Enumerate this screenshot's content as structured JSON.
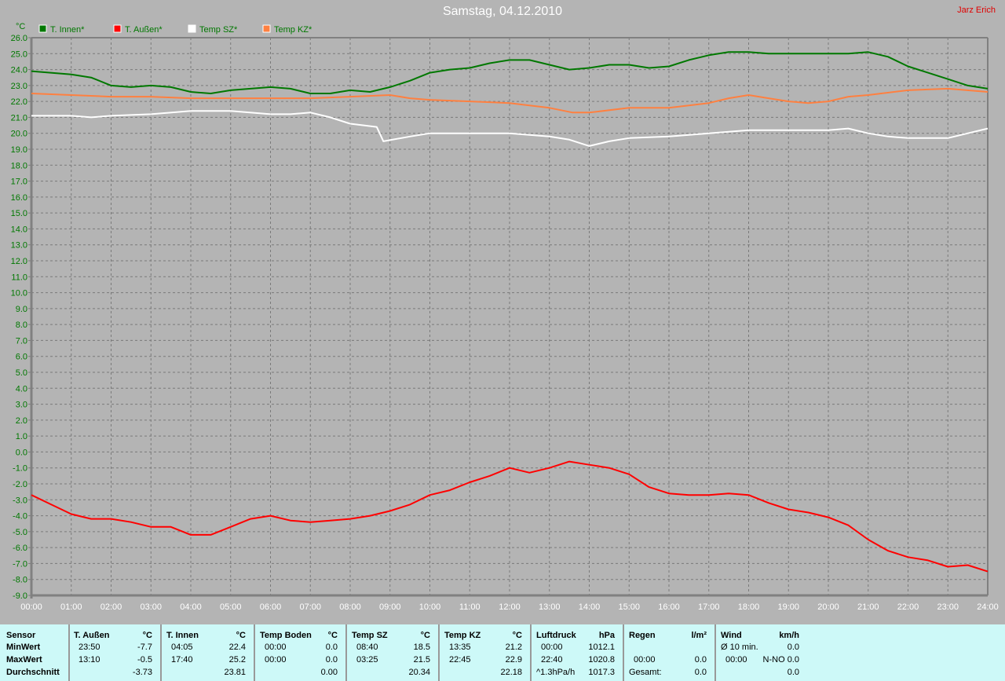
{
  "title": "Samstag, 04.12.2010",
  "author": "Jarz Erich",
  "chart_data": {
    "type": "line",
    "ylabel": "°C",
    "ylim": [
      -9,
      26
    ],
    "yticks": [
      "26.0",
      "25.0",
      "24.0",
      "23.0",
      "22.0",
      "21.0",
      "20.0",
      "19.0",
      "18.0",
      "17.0",
      "16.0",
      "15.0",
      "14.0",
      "13.0",
      "12.0",
      "11.0",
      "10.0",
      "9.0",
      "8.0",
      "7.0",
      "6.0",
      "5.0",
      "4.0",
      "3.0",
      "2.0",
      "1.0",
      "0.0",
      "-1.0",
      "-2.0",
      "-3.0",
      "-4.0",
      "-5.0",
      "-6.0",
      "-7.0",
      "-8.0",
      "-9.0"
    ],
    "xticks": [
      "00:00",
      "01:00",
      "02:00",
      "03:00",
      "04:00",
      "05:00",
      "06:00",
      "07:00",
      "08:00",
      "09:00",
      "10:00",
      "11:00",
      "12:00",
      "13:00",
      "14:00",
      "15:00",
      "16:00",
      "17:00",
      "18:00",
      "19:00",
      "20:00",
      "21:00",
      "22:00",
      "23:00",
      "24:00"
    ],
    "grid": true,
    "legend": "top-left",
    "series": [
      {
        "name": "T. Innen*",
        "color": "#007800",
        "points": [
          [
            "00:00",
            23.9
          ],
          [
            "01:00",
            23.7
          ],
          [
            "01:30",
            23.5
          ],
          [
            "02:00",
            23.0
          ],
          [
            "02:30",
            22.9
          ],
          [
            "03:00",
            23.0
          ],
          [
            "03:30",
            22.9
          ],
          [
            "04:00",
            22.6
          ],
          [
            "04:30",
            22.5
          ],
          [
            "05:00",
            22.7
          ],
          [
            "05:30",
            22.8
          ],
          [
            "06:00",
            22.9
          ],
          [
            "06:30",
            22.8
          ],
          [
            "07:00",
            22.5
          ],
          [
            "07:30",
            22.5
          ],
          [
            "08:00",
            22.7
          ],
          [
            "08:30",
            22.6
          ],
          [
            "09:00",
            22.9
          ],
          [
            "09:30",
            23.3
          ],
          [
            "10:00",
            23.8
          ],
          [
            "10:30",
            24.0
          ],
          [
            "11:00",
            24.1
          ],
          [
            "11:30",
            24.4
          ],
          [
            "12:00",
            24.6
          ],
          [
            "12:30",
            24.6
          ],
          [
            "13:00",
            24.3
          ],
          [
            "13:30",
            24.0
          ],
          [
            "14:00",
            24.1
          ],
          [
            "14:30",
            24.3
          ],
          [
            "15:00",
            24.3
          ],
          [
            "15:30",
            24.1
          ],
          [
            "16:00",
            24.2
          ],
          [
            "16:30",
            24.6
          ],
          [
            "17:00",
            24.9
          ],
          [
            "17:30",
            25.1
          ],
          [
            "18:00",
            25.1
          ],
          [
            "18:30",
            25.0
          ],
          [
            "19:00",
            25.0
          ],
          [
            "20:00",
            25.0
          ],
          [
            "20:30",
            25.0
          ],
          [
            "21:00",
            25.1
          ],
          [
            "21:30",
            24.8
          ],
          [
            "22:00",
            24.2
          ],
          [
            "22:30",
            23.8
          ],
          [
            "23:00",
            23.4
          ],
          [
            "23:30",
            23.0
          ],
          [
            "24:00",
            22.8
          ]
        ]
      },
      {
        "name": "T. Außen*",
        "color": "#ff0000",
        "points": [
          [
            "00:00",
            -2.7
          ],
          [
            "00:30",
            -3.3
          ],
          [
            "01:00",
            -3.9
          ],
          [
            "01:30",
            -4.2
          ],
          [
            "02:00",
            -4.2
          ],
          [
            "02:30",
            -4.4
          ],
          [
            "03:00",
            -4.7
          ],
          [
            "03:30",
            -4.7
          ],
          [
            "04:00",
            -5.2
          ],
          [
            "04:30",
            -5.2
          ],
          [
            "05:00",
            -4.7
          ],
          [
            "05:30",
            -4.2
          ],
          [
            "06:00",
            -4.0
          ],
          [
            "06:30",
            -4.3
          ],
          [
            "07:00",
            -4.4
          ],
          [
            "07:30",
            -4.3
          ],
          [
            "08:00",
            -4.2
          ],
          [
            "08:30",
            -4.0
          ],
          [
            "09:00",
            -3.7
          ],
          [
            "09:30",
            -3.3
          ],
          [
            "10:00",
            -2.7
          ],
          [
            "10:30",
            -2.4
          ],
          [
            "11:00",
            -1.9
          ],
          [
            "11:30",
            -1.5
          ],
          [
            "12:00",
            -1.0
          ],
          [
            "12:30",
            -1.3
          ],
          [
            "13:00",
            -1.0
          ],
          [
            "13:30",
            -0.6
          ],
          [
            "14:00",
            -0.8
          ],
          [
            "14:30",
            -1.0
          ],
          [
            "15:00",
            -1.4
          ],
          [
            "15:30",
            -2.2
          ],
          [
            "16:00",
            -2.6
          ],
          [
            "16:30",
            -2.7
          ],
          [
            "17:00",
            -2.7
          ],
          [
            "17:30",
            -2.6
          ],
          [
            "18:00",
            -2.7
          ],
          [
            "18:30",
            -3.2
          ],
          [
            "19:00",
            -3.6
          ],
          [
            "19:30",
            -3.8
          ],
          [
            "20:00",
            -4.1
          ],
          [
            "20:30",
            -4.6
          ],
          [
            "21:00",
            -5.5
          ],
          [
            "21:30",
            -6.2
          ],
          [
            "22:00",
            -6.6
          ],
          [
            "22:30",
            -6.8
          ],
          [
            "23:00",
            -7.2
          ],
          [
            "23:30",
            -7.1
          ],
          [
            "24:00",
            -7.5
          ]
        ]
      },
      {
        "name": "Temp SZ*",
        "color": "#ffffff",
        "points": [
          [
            "00:00",
            21.1
          ],
          [
            "01:00",
            21.1
          ],
          [
            "01:30",
            21.0
          ],
          [
            "02:00",
            21.1
          ],
          [
            "03:00",
            21.2
          ],
          [
            "04:00",
            21.4
          ],
          [
            "05:00",
            21.4
          ],
          [
            "06:00",
            21.2
          ],
          [
            "06:30",
            21.2
          ],
          [
            "07:00",
            21.3
          ],
          [
            "07:30",
            21.0
          ],
          [
            "08:00",
            20.6
          ],
          [
            "08:40",
            20.4
          ],
          [
            "08:50",
            19.5
          ],
          [
            "09:30",
            19.8
          ],
          [
            "10:00",
            20.0
          ],
          [
            "11:00",
            20.0
          ],
          [
            "12:00",
            20.0
          ],
          [
            "13:00",
            19.8
          ],
          [
            "13:30",
            19.6
          ],
          [
            "14:00",
            19.2
          ],
          [
            "14:30",
            19.5
          ],
          [
            "15:00",
            19.7
          ],
          [
            "16:00",
            19.8
          ],
          [
            "17:00",
            20.0
          ],
          [
            "18:00",
            20.2
          ],
          [
            "19:00",
            20.2
          ],
          [
            "20:00",
            20.2
          ],
          [
            "20:30",
            20.3
          ],
          [
            "21:00",
            20.0
          ],
          [
            "21:30",
            19.8
          ],
          [
            "22:00",
            19.7
          ],
          [
            "23:00",
            19.7
          ],
          [
            "23:30",
            20.0
          ],
          [
            "24:00",
            20.3
          ]
        ]
      },
      {
        "name": "Temp KZ*",
        "color": "#ff8040",
        "points": [
          [
            "00:00",
            22.5
          ],
          [
            "01:00",
            22.4
          ],
          [
            "02:00",
            22.3
          ],
          [
            "03:00",
            22.3
          ],
          [
            "04:00",
            22.2
          ],
          [
            "05:00",
            22.2
          ],
          [
            "06:00",
            22.2
          ],
          [
            "07:00",
            22.2
          ],
          [
            "08:00",
            22.3
          ],
          [
            "09:00",
            22.4
          ],
          [
            "09:30",
            22.2
          ],
          [
            "10:00",
            22.1
          ],
          [
            "11:00",
            22.0
          ],
          [
            "12:00",
            21.9
          ],
          [
            "13:00",
            21.6
          ],
          [
            "13:35",
            21.3
          ],
          [
            "14:00",
            21.3
          ],
          [
            "15:00",
            21.6
          ],
          [
            "16:00",
            21.6
          ],
          [
            "17:00",
            21.9
          ],
          [
            "17:30",
            22.2
          ],
          [
            "18:00",
            22.4
          ],
          [
            "18:30",
            22.2
          ],
          [
            "19:00",
            22.0
          ],
          [
            "19:30",
            21.9
          ],
          [
            "20:00",
            22.0
          ],
          [
            "20:30",
            22.3
          ],
          [
            "21:00",
            22.4
          ],
          [
            "22:00",
            22.7
          ],
          [
            "23:00",
            22.8
          ],
          [
            "24:00",
            22.6
          ]
        ]
      }
    ]
  },
  "stats": {
    "row_labels": [
      "Sensor",
      "MinWert",
      "MaxWert",
      "Durchschnitt"
    ],
    "columns": [
      {
        "name": "T. Außen",
        "unit": "°C",
        "rows": [
          [
            "23:50",
            "-7.7"
          ],
          [
            "13:10",
            "-0.5"
          ],
          [
            "",
            "-3.73"
          ]
        ]
      },
      {
        "name": "T. Innen",
        "unit": "°C",
        "rows": [
          [
            "04:05",
            "22.4"
          ],
          [
            "17:40",
            "25.2"
          ],
          [
            "",
            "23.81"
          ]
        ]
      },
      {
        "name": "Temp Boden",
        "unit": "°C",
        "rows": [
          [
            "00:00",
            "0.0"
          ],
          [
            "00:00",
            "0.0"
          ],
          [
            "",
            "0.00"
          ]
        ]
      },
      {
        "name": "Temp SZ",
        "unit": "°C",
        "rows": [
          [
            "08:40",
            "18.5"
          ],
          [
            "03:25",
            "21.5"
          ],
          [
            "",
            "20.34"
          ]
        ]
      },
      {
        "name": "Temp KZ",
        "unit": "°C",
        "rows": [
          [
            "13:35",
            "21.2"
          ],
          [
            "22:45",
            "22.9"
          ],
          [
            "",
            "22.18"
          ]
        ]
      },
      {
        "name": "Luftdruck",
        "unit": "hPa",
        "rows": [
          [
            "00:00",
            "1012.1"
          ],
          [
            "22:40",
            "1020.8"
          ],
          [
            "^1.3hPa/h",
            "1017.3"
          ]
        ]
      },
      {
        "name": "Regen",
        "unit": "l/m²",
        "rows": [
          [
            "",
            ""
          ],
          [
            "00:00",
            "0.0"
          ],
          [
            "Gesamt:",
            "0.0"
          ]
        ]
      },
      {
        "name": "Wind",
        "unit": "km/h",
        "rows": [
          [
            "Ø 10 min.",
            "0.0"
          ],
          [
            "00:00",
            "N-NO 0.0"
          ],
          [
            "",
            "0.0"
          ]
        ]
      }
    ]
  }
}
